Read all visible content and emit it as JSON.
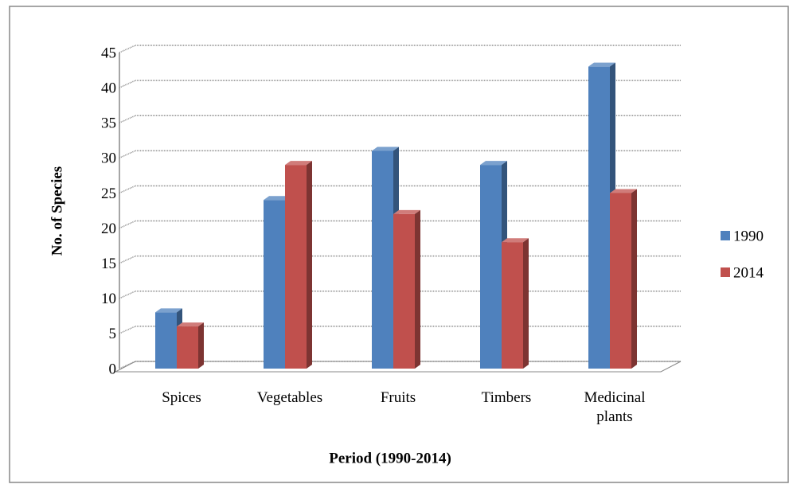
{
  "chart_data": {
    "type": "bar3d",
    "categories": [
      "Spices",
      "Vegetables",
      "Fruits",
      "Timbers",
      "Medicinal plants"
    ],
    "series": [
      {
        "name": "1990",
        "color": "#4f81bd",
        "values": [
          8,
          24,
          31,
          29,
          43
        ]
      },
      {
        "name": "2014",
        "color": "#c0504d",
        "values": [
          6,
          29,
          22,
          18,
          25
        ]
      }
    ],
    "ylim": [
      0,
      45
    ],
    "yticks": [
      0,
      5,
      10,
      15,
      20,
      25,
      30,
      35,
      40,
      45
    ],
    "grid": true,
    "y_label": "No. of Species",
    "x_label": "Period (1990-2014)",
    "legend": "right"
  }
}
